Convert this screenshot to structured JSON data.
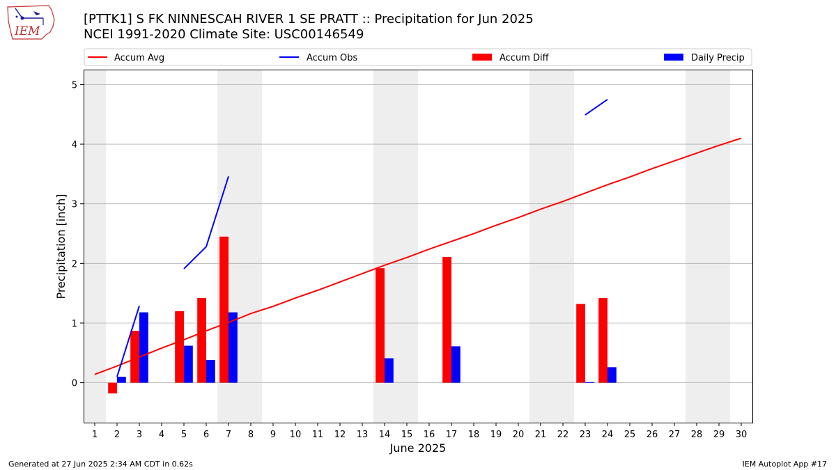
{
  "header": {
    "title_line1": "[PTTK1] S FK NINNESCAH RIVER 1 SE PRATT :: Precipitation for Jun 2025",
    "title_line2": "NCEI 1991-2020 Climate Site: USC00146549"
  },
  "logo": {
    "text": "IEM",
    "icon": "iowa-state-outline-logo"
  },
  "footer": {
    "left": "Generated at 27 Jun 2025 2:34 AM CDT in 0.62s",
    "right": "IEM Autoplot App #17"
  },
  "colors": {
    "avg": "#ff0000",
    "obs": "#0000ff",
    "diff": "#ff0000",
    "daily": "#0000ff",
    "weekend": "#eeeeee",
    "grid": "#b0b0b0"
  },
  "chart_data": {
    "type": "bar",
    "xlabel": "June 2025",
    "ylabel": "Precipitation [inch]",
    "xlim": [
      0.5,
      30.5
    ],
    "ylim": [
      -0.67,
      5.25
    ],
    "x_ticks": [
      1,
      2,
      3,
      4,
      5,
      6,
      7,
      8,
      9,
      10,
      11,
      12,
      13,
      14,
      15,
      16,
      17,
      18,
      19,
      20,
      21,
      22,
      23,
      24,
      25,
      26,
      27,
      28,
      29,
      30
    ],
    "y_ticks": [
      0,
      1,
      2,
      3,
      4,
      5
    ],
    "grid": "y",
    "legend_placement": "top, above plot",
    "weekend_shading_days": [
      1,
      7,
      8,
      14,
      15,
      21,
      22,
      28,
      29
    ],
    "series": [
      {
        "name": "Accum Avg",
        "kind": "line",
        "x": [
          1,
          2,
          3,
          4,
          5,
          6,
          7,
          8,
          9,
          10,
          11,
          12,
          13,
          14,
          15,
          16,
          17,
          18,
          19,
          20,
          21,
          22,
          23,
          24,
          25,
          26,
          27,
          28,
          29,
          30
        ],
        "values": [
          0.14,
          0.28,
          0.43,
          0.58,
          0.72,
          0.87,
          1.01,
          1.16,
          1.28,
          1.42,
          1.55,
          1.69,
          1.83,
          1.97,
          2.1,
          2.24,
          2.37,
          2.5,
          2.64,
          2.77,
          2.91,
          3.04,
          3.18,
          3.32,
          3.45,
          3.59,
          3.72,
          3.85,
          3.98,
          4.1
        ]
      },
      {
        "name": "Accum Obs",
        "kind": "line",
        "segments": [
          {
            "x": [
              2,
              3
            ],
            "values": [
              0.1,
              1.29
            ]
          },
          {
            "x": [
              5,
              6,
              7
            ],
            "values": [
              1.91,
              2.28,
              3.46
            ]
          },
          {
            "x": [
              23,
              24
            ],
            "values": [
              4.49,
              4.75
            ]
          }
        ]
      },
      {
        "name": "Accum Diff",
        "kind": "bar",
        "x": [
          2,
          3,
          5,
          6,
          7,
          14,
          17,
          23,
          24
        ],
        "values": [
          -0.18,
          0.87,
          1.2,
          1.42,
          2.45,
          1.92,
          2.11,
          1.32,
          1.42
        ]
      },
      {
        "name": "Daily Precip",
        "kind": "bar",
        "x": [
          2,
          3,
          5,
          6,
          7,
          14,
          17,
          23,
          24
        ],
        "values": [
          0.1,
          1.18,
          0.62,
          0.38,
          1.18,
          0.41,
          0.61,
          0.01,
          0.26
        ]
      }
    ]
  }
}
